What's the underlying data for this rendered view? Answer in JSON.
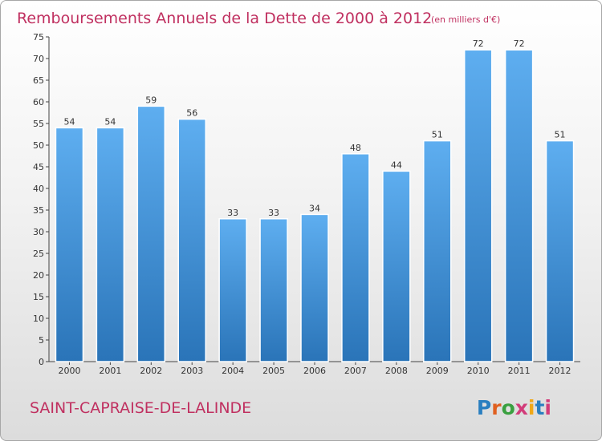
{
  "title": "Remboursements Annuels de la Dette de 2000 à 2012",
  "unit": "(en milliers d'€)",
  "commune": "SAINT-CAPRAISE-DE-LALINDE",
  "logo": {
    "text": "Proxiti",
    "letter_colors": [
      "#2a7fc0",
      "#e06020",
      "#3aa040",
      "#d23c7a",
      "#f0a818",
      "#2a7fc0",
      "#d23c7a"
    ]
  },
  "colors": {
    "bar_top": "#5eaef0",
    "bar_bottom": "#2a74b8",
    "title": "#c03060"
  },
  "chart_data": {
    "type": "bar",
    "title": "Remboursements Annuels de la Dette de 2000 à 2012",
    "xlabel": "",
    "ylabel": "",
    "categories": [
      "2000",
      "2001",
      "2002",
      "2003",
      "2004",
      "2005",
      "2006",
      "2007",
      "2008",
      "2009",
      "2010",
      "2011",
      "2012"
    ],
    "values": [
      54,
      54,
      59,
      56,
      33,
      33,
      34,
      48,
      44,
      51,
      72,
      72,
      51
    ],
    "ylim": [
      0,
      75
    ],
    "yticks": [
      0,
      5,
      10,
      15,
      20,
      25,
      30,
      35,
      40,
      45,
      50,
      55,
      60,
      65,
      70,
      75
    ],
    "grid": false
  }
}
